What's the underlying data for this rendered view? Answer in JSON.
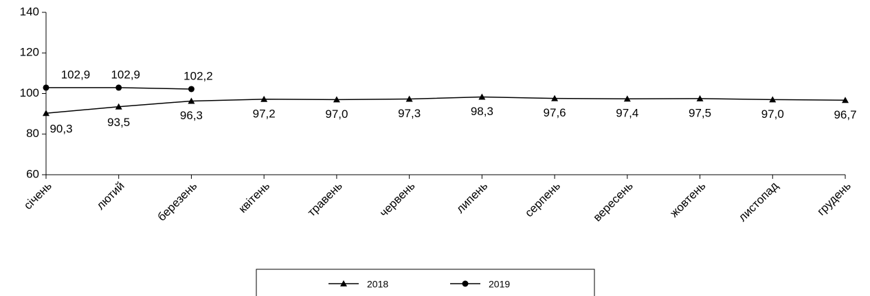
{
  "chart_data": {
    "type": "line",
    "categories": [
      "січень",
      "лютий",
      "березень",
      "квітень",
      "травень",
      "червень",
      "липень",
      "серпень",
      "вересень",
      "жовтень",
      "листопад",
      "грудень"
    ],
    "series": [
      {
        "name": "2018",
        "color": "#000000",
        "marker": "triangle",
        "values": [
          90.3,
          93.5,
          96.3,
          97.2,
          97.0,
          97.3,
          98.3,
          97.6,
          97.4,
          97.5,
          97.0,
          96.7
        ],
        "value_labels": [
          "90,3",
          "93,5",
          "96,3",
          "97,2",
          "97,0",
          "97,3",
          "98,3",
          "97,6",
          "97,4",
          "97,5",
          "97,0",
          "96,7"
        ]
      },
      {
        "name": "2019",
        "color": "#000000",
        "marker": "circle",
        "values": [
          102.9,
          102.9,
          102.2,
          null,
          null,
          null,
          null,
          null,
          null,
          null,
          null,
          null
        ],
        "value_labels": [
          "102,9",
          "102,9",
          "102,2",
          null,
          null,
          null,
          null,
          null,
          null,
          null,
          null,
          null
        ]
      }
    ],
    "ylim": [
      60,
      140
    ],
    "yticks": [
      60,
      80,
      100,
      120,
      140
    ],
    "grid": false,
    "legend": "bottom"
  }
}
